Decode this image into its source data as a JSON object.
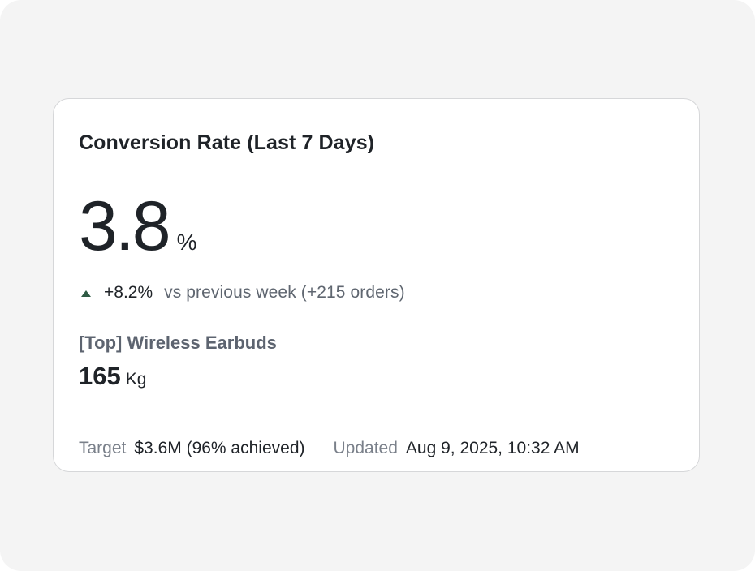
{
  "card": {
    "title": "Conversion Rate (Last 7 Days)",
    "metric": {
      "value": "3.8",
      "unit": "%"
    },
    "delta": {
      "direction": "up",
      "icon": "triangle-up-icon",
      "value": "+8.2%",
      "note": "vs previous week (+215 orders)",
      "color": "#2f5b45"
    },
    "top_item": {
      "label": "[Top] Wireless Earbuds",
      "value": "165",
      "unit": "Kg"
    },
    "footer": {
      "target_label": "Target",
      "target_value": "$3.6M (96% achieved)",
      "updated_label": "Updated",
      "updated_value": "Aug 9, 2025, 10:32 AM"
    }
  }
}
